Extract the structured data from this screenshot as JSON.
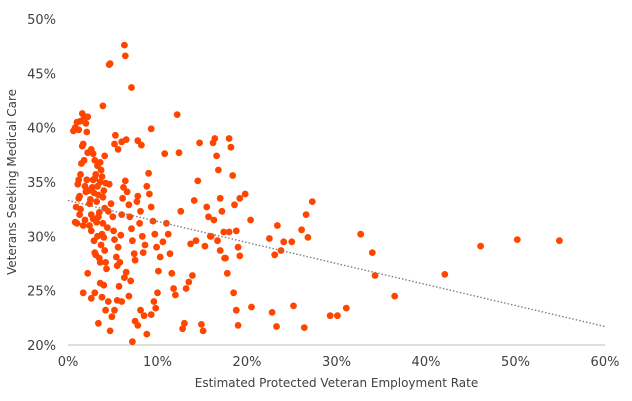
{
  "chart_data": {
    "type": "scatter",
    "title": "",
    "xlabel": "Estimated Protected Veteran Employment Rate",
    "ylabel": "Veterans Seeking Medical Care",
    "xlim": [
      0,
      0.6
    ],
    "ylim": [
      0.2,
      0.5
    ],
    "x_ticks": [
      "0%",
      "10%",
      "20%",
      "30%",
      "40%",
      "50%",
      "60%"
    ],
    "y_ticks": [
      "20%",
      "25%",
      "30%",
      "35%",
      "40%",
      "45%",
      "50%"
    ],
    "grid": false,
    "legend": "none",
    "colors": {
      "points": "#ff4500",
      "trendline": "#7f7f7f",
      "axis": "#bfbfbf"
    },
    "trendline": {
      "type": "linear",
      "style": "dotted",
      "x": [
        0,
        0.6
      ],
      "y": [
        0.333,
        0.217
      ]
    },
    "points": [
      [
        0.006,
        0.397
      ],
      [
        0.008,
        0.4
      ],
      [
        0.01,
        0.405
      ],
      [
        0.012,
        0.398
      ],
      [
        0.014,
        0.406
      ],
      [
        0.016,
        0.413
      ],
      [
        0.018,
        0.41
      ],
      [
        0.02,
        0.404
      ],
      [
        0.021,
        0.396
      ],
      [
        0.022,
        0.41
      ],
      [
        0.011,
        0.348
      ],
      [
        0.012,
        0.352
      ],
      [
        0.013,
        0.337
      ],
      [
        0.014,
        0.357
      ],
      [
        0.015,
        0.367
      ],
      [
        0.016,
        0.383
      ],
      [
        0.017,
        0.385
      ],
      [
        0.018,
        0.37
      ],
      [
        0.019,
        0.346
      ],
      [
        0.02,
        0.341
      ],
      [
        0.008,
        0.313
      ],
      [
        0.009,
        0.327
      ],
      [
        0.01,
        0.312
      ],
      [
        0.012,
        0.335
      ],
      [
        0.013,
        0.32
      ],
      [
        0.014,
        0.325
      ],
      [
        0.017,
        0.31
      ],
      [
        0.019,
        0.315
      ],
      [
        0.021,
        0.352
      ],
      [
        0.022,
        0.377
      ],
      [
        0.023,
        0.342
      ],
      [
        0.024,
        0.33
      ],
      [
        0.025,
        0.334
      ],
      [
        0.026,
        0.32
      ],
      [
        0.027,
        0.345
      ],
      [
        0.028,
        0.352
      ],
      [
        0.029,
        0.34
      ],
      [
        0.03,
        0.353
      ],
      [
        0.031,
        0.357
      ],
      [
        0.032,
        0.332
      ],
      [
        0.033,
        0.346
      ],
      [
        0.034,
        0.338
      ],
      [
        0.035,
        0.322
      ],
      [
        0.036,
        0.35
      ],
      [
        0.037,
        0.361
      ],
      [
        0.038,
        0.355
      ],
      [
        0.039,
        0.336
      ],
      [
        0.04,
        0.342
      ],
      [
        0.041,
        0.326
      ],
      [
        0.042,
        0.349
      ],
      [
        0.024,
        0.31
      ],
      [
        0.026,
        0.305
      ],
      [
        0.028,
        0.316
      ],
      [
        0.029,
        0.296
      ],
      [
        0.03,
        0.285
      ],
      [
        0.031,
        0.283
      ],
      [
        0.032,
        0.313
      ],
      [
        0.033,
        0.3
      ],
      [
        0.034,
        0.318
      ],
      [
        0.035,
        0.28
      ],
      [
        0.036,
        0.276
      ],
      [
        0.037,
        0.292
      ],
      [
        0.038,
        0.302
      ],
      [
        0.039,
        0.312
      ],
      [
        0.04,
        0.299
      ],
      [
        0.041,
        0.287
      ],
      [
        0.042,
        0.276
      ],
      [
        0.043,
        0.27
      ],
      [
        0.044,
        0.308
      ],
      [
        0.045,
        0.323
      ],
      [
        0.026,
        0.38
      ],
      [
        0.028,
        0.376
      ],
      [
        0.03,
        0.37
      ],
      [
        0.033,
        0.365
      ],
      [
        0.036,
        0.368
      ],
      [
        0.039,
        0.42
      ],
      [
        0.041,
        0.374
      ],
      [
        0.046,
        0.458
      ],
      [
        0.047,
        0.459
      ],
      [
        0.063,
        0.476
      ],
      [
        0.064,
        0.466
      ],
      [
        0.052,
        0.385
      ],
      [
        0.053,
        0.393
      ],
      [
        0.056,
        0.38
      ],
      [
        0.06,
        0.387
      ],
      [
        0.065,
        0.389
      ],
      [
        0.071,
        0.437
      ],
      [
        0.078,
        0.388
      ],
      [
        0.082,
        0.384
      ],
      [
        0.093,
        0.399
      ],
      [
        0.017,
        0.248
      ],
      [
        0.022,
        0.266
      ],
      [
        0.026,
        0.243
      ],
      [
        0.03,
        0.248
      ],
      [
        0.034,
        0.22
      ],
      [
        0.036,
        0.257
      ],
      [
        0.038,
        0.244
      ],
      [
        0.04,
        0.255
      ],
      [
        0.042,
        0.232
      ],
      [
        0.045,
        0.24
      ],
      [
        0.047,
        0.213
      ],
      [
        0.049,
        0.226
      ],
      [
        0.052,
        0.232
      ],
      [
        0.055,
        0.241
      ],
      [
        0.057,
        0.254
      ],
      [
        0.06,
        0.24
      ],
      [
        0.063,
        0.262
      ],
      [
        0.065,
        0.267
      ],
      [
        0.068,
        0.245
      ],
      [
        0.07,
        0.259
      ],
      [
        0.072,
        0.203
      ],
      [
        0.075,
        0.222
      ],
      [
        0.078,
        0.218
      ],
      [
        0.081,
        0.232
      ],
      [
        0.085,
        0.227
      ],
      [
        0.088,
        0.21
      ],
      [
        0.093,
        0.228
      ],
      [
        0.096,
        0.24
      ],
      [
        0.098,
        0.234
      ],
      [
        0.1,
        0.248
      ],
      [
        0.046,
        0.348
      ],
      [
        0.048,
        0.33
      ],
      [
        0.05,
        0.318
      ],
      [
        0.051,
        0.305
      ],
      [
        0.052,
        0.297
      ],
      [
        0.054,
        0.281
      ],
      [
        0.055,
        0.273
      ],
      [
        0.056,
        0.29
      ],
      [
        0.058,
        0.276
      ],
      [
        0.059,
        0.301
      ],
      [
        0.06,
        0.32
      ],
      [
        0.061,
        0.335
      ],
      [
        0.062,
        0.345
      ],
      [
        0.064,
        0.351
      ],
      [
        0.066,
        0.341
      ],
      [
        0.068,
        0.329
      ],
      [
        0.069,
        0.318
      ],
      [
        0.071,
        0.307
      ],
      [
        0.072,
        0.296
      ],
      [
        0.074,
        0.284
      ],
      [
        0.075,
        0.278
      ],
      [
        0.077,
        0.332
      ],
      [
        0.078,
        0.337
      ],
      [
        0.08,
        0.312
      ],
      [
        0.081,
        0.323
      ],
      [
        0.083,
        0.3
      ],
      [
        0.084,
        0.285
      ],
      [
        0.086,
        0.292
      ],
      [
        0.088,
        0.346
      ],
      [
        0.09,
        0.358
      ],
      [
        0.091,
        0.339
      ],
      [
        0.093,
        0.327
      ],
      [
        0.095,
        0.314
      ],
      [
        0.097,
        0.302
      ],
      [
        0.099,
        0.29
      ],
      [
        0.101,
        0.268
      ],
      [
        0.103,
        0.281
      ],
      [
        0.106,
        0.295
      ],
      [
        0.108,
        0.376
      ],
      [
        0.11,
        0.312
      ],
      [
        0.112,
        0.302
      ],
      [
        0.114,
        0.284
      ],
      [
        0.116,
        0.266
      ],
      [
        0.118,
        0.252
      ],
      [
        0.12,
        0.246
      ],
      [
        0.122,
        0.412
      ],
      [
        0.124,
        0.377
      ],
      [
        0.126,
        0.323
      ],
      [
        0.128,
        0.215
      ],
      [
        0.13,
        0.22
      ],
      [
        0.132,
        0.252
      ],
      [
        0.135,
        0.258
      ],
      [
        0.137,
        0.293
      ],
      [
        0.139,
        0.264
      ],
      [
        0.141,
        0.333
      ],
      [
        0.143,
        0.296
      ],
      [
        0.145,
        0.351
      ],
      [
        0.147,
        0.386
      ],
      [
        0.149,
        0.219
      ],
      [
        0.151,
        0.213
      ],
      [
        0.153,
        0.291
      ],
      [
        0.155,
        0.327
      ],
      [
        0.157,
        0.318
      ],
      [
        0.159,
        0.3
      ],
      [
        0.162,
        0.386
      ],
      [
        0.164,
        0.39
      ],
      [
        0.166,
        0.374
      ],
      [
        0.168,
        0.361
      ],
      [
        0.17,
        0.335
      ],
      [
        0.172,
        0.323
      ],
      [
        0.174,
        0.304
      ],
      [
        0.176,
        0.28
      ],
      [
        0.178,
        0.266
      ],
      [
        0.18,
        0.39
      ],
      [
        0.182,
        0.382
      ],
      [
        0.184,
        0.356
      ],
      [
        0.186,
        0.329
      ],
      [
        0.188,
        0.305
      ],
      [
        0.19,
        0.29
      ],
      [
        0.192,
        0.282
      ],
      [
        0.16,
        0.3
      ],
      [
        0.163,
        0.315
      ],
      [
        0.167,
        0.296
      ],
      [
        0.17,
        0.287
      ],
      [
        0.175,
        0.28
      ],
      [
        0.18,
        0.304
      ],
      [
        0.185,
        0.248
      ],
      [
        0.188,
        0.232
      ],
      [
        0.19,
        0.218
      ],
      [
        0.192,
        0.335
      ],
      [
        0.198,
        0.339
      ],
      [
        0.204,
        0.315
      ],
      [
        0.205,
        0.235
      ],
      [
        0.225,
        0.298
      ],
      [
        0.228,
        0.23
      ],
      [
        0.231,
        0.283
      ],
      [
        0.233,
        0.217
      ],
      [
        0.234,
        0.31
      ],
      [
        0.238,
        0.287
      ],
      [
        0.241,
        0.295
      ],
      [
        0.25,
        0.295
      ],
      [
        0.252,
        0.236
      ],
      [
        0.261,
        0.306
      ],
      [
        0.264,
        0.216
      ],
      [
        0.266,
        0.32
      ],
      [
        0.268,
        0.299
      ],
      [
        0.273,
        0.332
      ],
      [
        0.293,
        0.227
      ],
      [
        0.301,
        0.227
      ],
      [
        0.311,
        0.234
      ],
      [
        0.327,
        0.302
      ],
      [
        0.34,
        0.285
      ],
      [
        0.343,
        0.264
      ],
      [
        0.365,
        0.245
      ],
      [
        0.421,
        0.265
      ],
      [
        0.461,
        0.291
      ],
      [
        0.502,
        0.297
      ],
      [
        0.549,
        0.296
      ]
    ]
  }
}
